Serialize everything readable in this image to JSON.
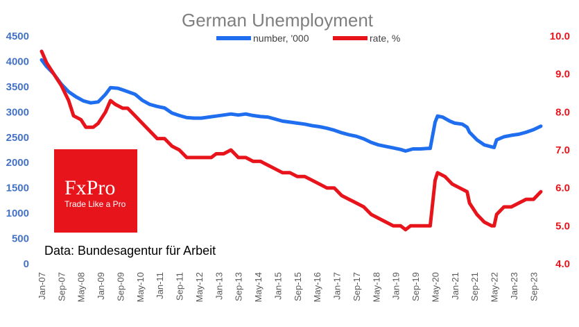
{
  "chart_data": {
    "type": "line",
    "title": "German Unemployment",
    "source_note": "Data: Bundesagentur für Arbeit",
    "logo": {
      "name": "FxPro",
      "tagline": "Trade Like a Pro"
    },
    "colors": {
      "number": "#1f6ef0",
      "rate": "#e8141c",
      "logo_bg": "#e8141c"
    },
    "legend": {
      "position": "top",
      "entries": [
        "number, '000",
        "rate, %"
      ]
    },
    "x_axis": {
      "ticks": [
        "Jan-07",
        "Sep-07",
        "May-08",
        "Jan-09",
        "Sep-09",
        "May-10",
        "Jan-11",
        "Sep-11",
        "May-12",
        "Jan-13",
        "Sep-13",
        "May-14",
        "Jan-15",
        "Sep-15",
        "May-16",
        "Jan-17",
        "Sep-17",
        "May-18",
        "Jan-19",
        "Sep-19",
        "May-20",
        "Jan-21",
        "Sep-21",
        "May-22",
        "Jan-23",
        "Sep-23"
      ],
      "range": [
        "2007-01",
        "2023-12"
      ]
    },
    "y_left": {
      "ticks": [
        "0",
        "500",
        "1000",
        "1500",
        "2000",
        "2500",
        "3000",
        "3500",
        "4000",
        "4500"
      ],
      "ylim": [
        0,
        4500
      ]
    },
    "y_right": {
      "ticks": [
        "4.0",
        "5.0",
        "6.0",
        "7.0",
        "8.0",
        "9.0",
        "10.0"
      ],
      "ylim": [
        4.0,
        10.0
      ]
    },
    "grid": false,
    "series": [
      {
        "name": "number, '000",
        "axis": "left",
        "points": [
          [
            "2007-01",
            4030
          ],
          [
            "2007-03",
            3900
          ],
          [
            "2007-06",
            3750
          ],
          [
            "2007-09",
            3550
          ],
          [
            "2007-12",
            3400
          ],
          [
            "2008-03",
            3300
          ],
          [
            "2008-06",
            3220
          ],
          [
            "2008-09",
            3180
          ],
          [
            "2008-12",
            3200
          ],
          [
            "2009-03",
            3350
          ],
          [
            "2009-05",
            3480
          ],
          [
            "2009-08",
            3470
          ],
          [
            "2009-11",
            3420
          ],
          [
            "2010-03",
            3350
          ],
          [
            "2010-06",
            3230
          ],
          [
            "2010-09",
            3150
          ],
          [
            "2010-12",
            3110
          ],
          [
            "2011-03",
            3080
          ],
          [
            "2011-06",
            2980
          ],
          [
            "2011-09",
            2930
          ],
          [
            "2011-12",
            2890
          ],
          [
            "2012-03",
            2880
          ],
          [
            "2012-06",
            2880
          ],
          [
            "2012-09",
            2900
          ],
          [
            "2012-12",
            2920
          ],
          [
            "2013-03",
            2940
          ],
          [
            "2013-06",
            2960
          ],
          [
            "2013-09",
            2940
          ],
          [
            "2013-12",
            2960
          ],
          [
            "2014-03",
            2930
          ],
          [
            "2014-06",
            2910
          ],
          [
            "2014-09",
            2900
          ],
          [
            "2014-12",
            2860
          ],
          [
            "2015-03",
            2820
          ],
          [
            "2015-06",
            2800
          ],
          [
            "2015-09",
            2780
          ],
          [
            "2015-12",
            2760
          ],
          [
            "2016-03",
            2730
          ],
          [
            "2016-06",
            2710
          ],
          [
            "2016-09",
            2680
          ],
          [
            "2016-12",
            2640
          ],
          [
            "2017-03",
            2590
          ],
          [
            "2017-06",
            2550
          ],
          [
            "2017-09",
            2520
          ],
          [
            "2017-12",
            2470
          ],
          [
            "2018-03",
            2400
          ],
          [
            "2018-06",
            2350
          ],
          [
            "2018-09",
            2320
          ],
          [
            "2018-12",
            2290
          ],
          [
            "2019-03",
            2260
          ],
          [
            "2019-05",
            2230
          ],
          [
            "2019-08",
            2270
          ],
          [
            "2019-11",
            2270
          ],
          [
            "2020-02",
            2280
          ],
          [
            "2020-03",
            2280
          ],
          [
            "2020-05",
            2800
          ],
          [
            "2020-06",
            2920
          ],
          [
            "2020-08",
            2900
          ],
          [
            "2020-11",
            2820
          ],
          [
            "2021-01",
            2780
          ],
          [
            "2021-04",
            2760
          ],
          [
            "2021-06",
            2700
          ],
          [
            "2021-07",
            2600
          ],
          [
            "2021-10",
            2450
          ],
          [
            "2022-01",
            2350
          ],
          [
            "2022-04",
            2310
          ],
          [
            "2022-05",
            2300
          ],
          [
            "2022-06",
            2450
          ],
          [
            "2022-09",
            2510
          ],
          [
            "2022-12",
            2540
          ],
          [
            "2023-03",
            2560
          ],
          [
            "2023-06",
            2600
          ],
          [
            "2023-09",
            2650
          ],
          [
            "2023-12",
            2720
          ]
        ]
      },
      {
        "name": "rate, %",
        "axis": "right",
        "points": [
          [
            "2007-01",
            9.6
          ],
          [
            "2007-03",
            9.3
          ],
          [
            "2007-06",
            9.0
          ],
          [
            "2007-09",
            8.7
          ],
          [
            "2007-12",
            8.3
          ],
          [
            "2008-02",
            7.9
          ],
          [
            "2008-05",
            7.8
          ],
          [
            "2008-07",
            7.6
          ],
          [
            "2008-10",
            7.6
          ],
          [
            "2008-12",
            7.7
          ],
          [
            "2009-03",
            8.0
          ],
          [
            "2009-05",
            8.3
          ],
          [
            "2009-07",
            8.2
          ],
          [
            "2009-10",
            8.1
          ],
          [
            "2009-12",
            8.1
          ],
          [
            "2010-03",
            7.9
          ],
          [
            "2010-06",
            7.7
          ],
          [
            "2010-09",
            7.5
          ],
          [
            "2010-12",
            7.3
          ],
          [
            "2011-03",
            7.3
          ],
          [
            "2011-06",
            7.1
          ],
          [
            "2011-09",
            7.0
          ],
          [
            "2011-12",
            6.8
          ],
          [
            "2012-03",
            6.8
          ],
          [
            "2012-06",
            6.8
          ],
          [
            "2012-08",
            6.8
          ],
          [
            "2012-10",
            6.8
          ],
          [
            "2012-12",
            6.9
          ],
          [
            "2013-03",
            6.9
          ],
          [
            "2013-06",
            7.0
          ],
          [
            "2013-09",
            6.8
          ],
          [
            "2013-12",
            6.8
          ],
          [
            "2014-03",
            6.7
          ],
          [
            "2014-06",
            6.7
          ],
          [
            "2014-09",
            6.6
          ],
          [
            "2014-12",
            6.5
          ],
          [
            "2015-03",
            6.4
          ],
          [
            "2015-06",
            6.4
          ],
          [
            "2015-09",
            6.3
          ],
          [
            "2015-12",
            6.3
          ],
          [
            "2016-03",
            6.2
          ],
          [
            "2016-06",
            6.1
          ],
          [
            "2016-09",
            6.0
          ],
          [
            "2016-12",
            6.0
          ],
          [
            "2017-03",
            5.8
          ],
          [
            "2017-06",
            5.7
          ],
          [
            "2017-09",
            5.6
          ],
          [
            "2017-12",
            5.5
          ],
          [
            "2018-03",
            5.3
          ],
          [
            "2018-06",
            5.2
          ],
          [
            "2018-09",
            5.1
          ],
          [
            "2018-12",
            5.0
          ],
          [
            "2019-03",
            5.0
          ],
          [
            "2019-05",
            4.9
          ],
          [
            "2019-07",
            5.0
          ],
          [
            "2019-10",
            5.0
          ],
          [
            "2020-01",
            5.0
          ],
          [
            "2020-03",
            5.0
          ],
          [
            "2020-05",
            6.2
          ],
          [
            "2020-06",
            6.4
          ],
          [
            "2020-09",
            6.3
          ],
          [
            "2020-12",
            6.1
          ],
          [
            "2021-03",
            6.0
          ],
          [
            "2021-06",
            5.9
          ],
          [
            "2021-07",
            5.6
          ],
          [
            "2021-10",
            5.3
          ],
          [
            "2022-01",
            5.1
          ],
          [
            "2022-04",
            5.0
          ],
          [
            "2022-05",
            5.0
          ],
          [
            "2022-06",
            5.3
          ],
          [
            "2022-09",
            5.5
          ],
          [
            "2022-12",
            5.5
          ],
          [
            "2023-03",
            5.6
          ],
          [
            "2023-06",
            5.7
          ],
          [
            "2023-09",
            5.7
          ],
          [
            "2023-12",
            5.9
          ]
        ]
      }
    ]
  }
}
